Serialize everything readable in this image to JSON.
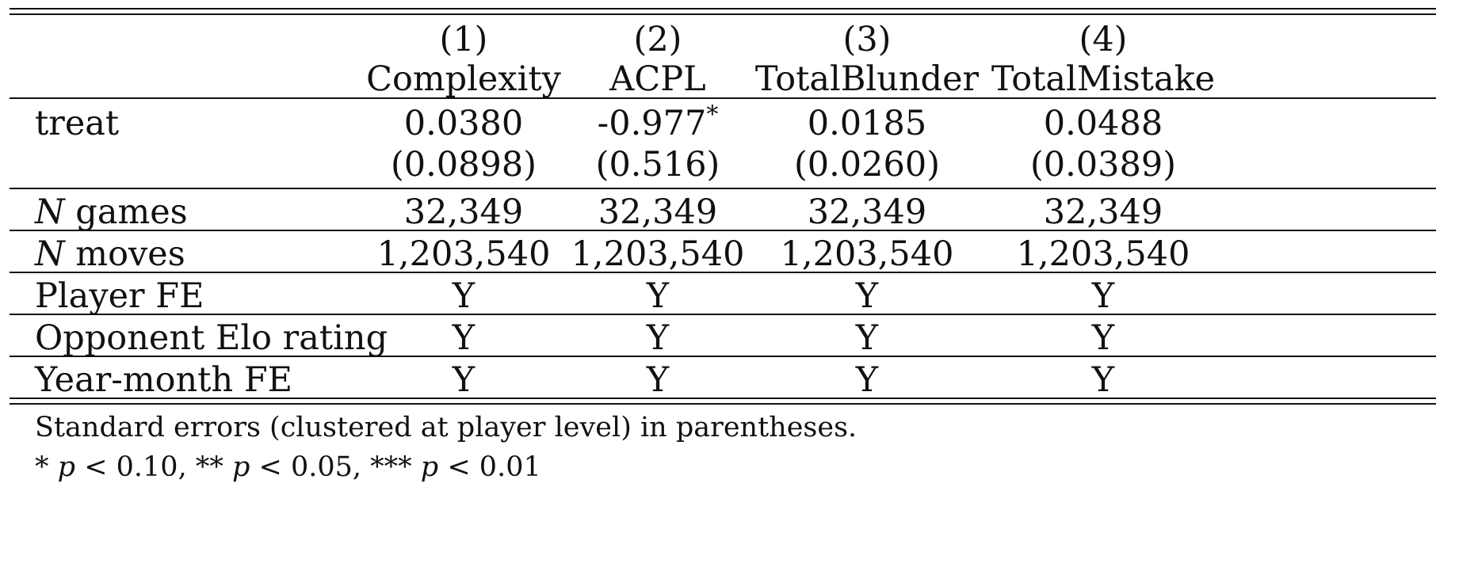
{
  "table": {
    "columns": [
      {
        "num": "(1)",
        "label": "Complexity"
      },
      {
        "num": "(2)",
        "label": "ACPL"
      },
      {
        "num": "(3)",
        "label": "TotalBlunder"
      },
      {
        "num": "(4)",
        "label": "TotalMistake"
      }
    ],
    "treat": {
      "label": "treat",
      "coef": [
        "0.0380",
        "-0.977",
        "0.0185",
        "0.0488"
      ],
      "stars": [
        "",
        "*",
        "",
        ""
      ],
      "se": [
        "(0.0898)",
        "(0.516)",
        "(0.0260)",
        "(0.0389)"
      ]
    },
    "n_games": {
      "label_n": "N",
      "label_rest": "games",
      "values": [
        "32,349",
        "32,349",
        "32,349",
        "32,349"
      ]
    },
    "n_moves": {
      "label_n": "N",
      "label_rest": "moves",
      "values": [
        "1,203,540",
        "1,203,540",
        "1,203,540",
        "1,203,540"
      ]
    },
    "player_fe": {
      "label": "Player FE",
      "values": [
        "Y",
        "Y",
        "Y",
        "Y"
      ]
    },
    "opponent_elo": {
      "label": "Opponent Elo rating",
      "values": [
        "Y",
        "Y",
        "Y",
        "Y"
      ]
    },
    "year_month_fe": {
      "label": "Year-month FE",
      "values": [
        "Y",
        "Y",
        "Y",
        "Y"
      ]
    }
  },
  "notes": {
    "line1": "Standard errors (clustered at player level) in parentheses.",
    "line2_parts": [
      "*",
      "p",
      "< 0.10, **",
      "p",
      "< 0.05, ***",
      "p",
      "< 0.01"
    ]
  }
}
